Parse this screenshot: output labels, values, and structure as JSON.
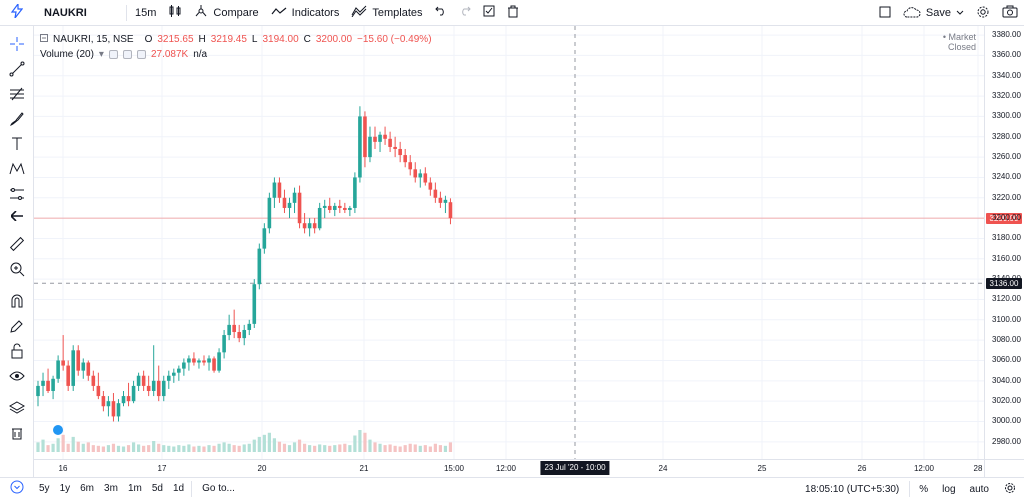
{
  "toolbar": {
    "symbol": "NAUKRI",
    "interval": "15m",
    "compare_label": "Compare",
    "indicators_label": "Indicators",
    "templates_label": "Templates",
    "save_label": "Save"
  },
  "legend": {
    "title": "NAUKRI, 15, NSE",
    "open_label": "O",
    "open": "3215.65",
    "high_label": "H",
    "high": "3219.45",
    "low_label": "L",
    "low": "3194.00",
    "close_label": "C",
    "close": "3200.00",
    "change": "−15.60 (−0.49%)",
    "volume_title": "Volume (20)",
    "volume_value": "27.087K",
    "volume_ma": "n/a",
    "market_status": "Market Closed"
  },
  "price_axis": {
    "ticks": [
      "3380.00",
      "3360.00",
      "3340.00",
      "3320.00",
      "3300.00",
      "3280.00",
      "3260.00",
      "3240.00",
      "3220.00",
      "3200.00",
      "3180.00",
      "3160.00",
      "3140.00",
      "3120.00",
      "3100.00",
      "3080.00",
      "3060.00",
      "3040.00",
      "3020.00",
      "3000.00",
      "2980.00"
    ],
    "last_price_tag": "3200.00",
    "crosshair_price_tag": "3136.00"
  },
  "time_axis": {
    "labels": [
      {
        "text": "16"
      },
      {
        "text": "17"
      },
      {
        "text": "20"
      },
      {
        "text": "21"
      },
      {
        "text": "15:00"
      },
      {
        "text": "12:00"
      },
      {
        "text": "24"
      },
      {
        "text": "25"
      },
      {
        "text": "26"
      },
      {
        "text": "12:00"
      },
      {
        "text": "28"
      }
    ],
    "crosshair_time_tag": "23 Jul '20 - 10:00"
  },
  "bottombar": {
    "ranges": [
      "5y",
      "1y",
      "6m",
      "3m",
      "1m",
      "5d",
      "1d"
    ],
    "goto_label": "Go to...",
    "clock": "18:05:10 (UTC+5:30)",
    "percent_label": "%",
    "log_label": "log",
    "auto_label": "auto"
  },
  "colors": {
    "up": "#26a69a",
    "down": "#ef5350",
    "accent": "#2962ff",
    "volume_up": "#b3e0d7",
    "volume_down": "#f5c3c3"
  },
  "chart_data": {
    "type": "candlestick",
    "ylim": [
      2970,
      3385
    ],
    "candles": [
      [
        3025,
        3040,
        3015,
        3035
      ],
      [
        3035,
        3048,
        3025,
        3040
      ],
      [
        3040,
        3052,
        3028,
        3030
      ],
      [
        3030,
        3045,
        3022,
        3042
      ],
      [
        3042,
        3065,
        3038,
        3060
      ],
      [
        3060,
        3085,
        3050,
        3055
      ],
      [
        3055,
        3060,
        3030,
        3035
      ],
      [
        3035,
        3075,
        3030,
        3070
      ],
      [
        3070,
        3075,
        3045,
        3050
      ],
      [
        3050,
        3062,
        3042,
        3058
      ],
      [
        3058,
        3060,
        3040,
        3045
      ],
      [
        3045,
        3050,
        3030,
        3035
      ],
      [
        3035,
        3048,
        3022,
        3025
      ],
      [
        3025,
        3030,
        3010,
        3015
      ],
      [
        3015,
        3025,
        3005,
        3020
      ],
      [
        3020,
        3028,
        3000,
        3005
      ],
      [
        3005,
        3022,
        3000,
        3018
      ],
      [
        3018,
        3030,
        3015,
        3025
      ],
      [
        3025,
        3038,
        3015,
        3020
      ],
      [
        3020,
        3040,
        3018,
        3035
      ],
      [
        3035,
        3048,
        3030,
        3045
      ],
      [
        3045,
        3050,
        3030,
        3035
      ],
      [
        3035,
        3045,
        3025,
        3030
      ],
      [
        3030,
        3075,
        3025,
        3040
      ],
      [
        3040,
        3055,
        3020,
        3025
      ],
      [
        3025,
        3045,
        3020,
        3040
      ],
      [
        3040,
        3050,
        3032,
        3045
      ],
      [
        3045,
        3052,
        3038,
        3048
      ],
      [
        3048,
        3055,
        3040,
        3052
      ],
      [
        3052,
        3062,
        3045,
        3058
      ],
      [
        3058,
        3065,
        3050,
        3062
      ],
      [
        3062,
        3068,
        3055,
        3058
      ],
      [
        3058,
        3062,
        3052,
        3060
      ],
      [
        3060,
        3065,
        3055,
        3058
      ],
      [
        3058,
        3065,
        3050,
        3062
      ],
      [
        3062,
        3064,
        3048,
        3050
      ],
      [
        3050,
        3072,
        3048,
        3068
      ],
      [
        3068,
        3090,
        3062,
        3085
      ],
      [
        3085,
        3105,
        3080,
        3095
      ],
      [
        3095,
        3110,
        3082,
        3088
      ],
      [
        3088,
        3095,
        3078,
        3082
      ],
      [
        3082,
        3095,
        3075,
        3090
      ],
      [
        3090,
        3100,
        3085,
        3096
      ],
      [
        3096,
        3140,
        3092,
        3135
      ],
      [
        3135,
        3175,
        3130,
        3170
      ],
      [
        3170,
        3195,
        3165,
        3190
      ],
      [
        3190,
        3225,
        3185,
        3220
      ],
      [
        3220,
        3240,
        3210,
        3235
      ],
      [
        3235,
        3240,
        3215,
        3220
      ],
      [
        3220,
        3228,
        3205,
        3210
      ],
      [
        3210,
        3220,
        3200,
        3215
      ],
      [
        3215,
        3230,
        3205,
        3225
      ],
      [
        3225,
        3232,
        3190,
        3195
      ],
      [
        3195,
        3205,
        3185,
        3190
      ],
      [
        3190,
        3200,
        3182,
        3195
      ],
      [
        3195,
        3200,
        3185,
        3190
      ],
      [
        3190,
        3215,
        3188,
        3210
      ],
      [
        3210,
        3218,
        3200,
        3212
      ],
      [
        3212,
        3220,
        3205,
        3208
      ],
      [
        3208,
        3215,
        3202,
        3212
      ],
      [
        3212,
        3218,
        3205,
        3210
      ],
      [
        3210,
        3215,
        3205,
        3208
      ],
      [
        3208,
        3212,
        3202,
        3210
      ],
      [
        3210,
        3245,
        3205,
        3240
      ],
      [
        3240,
        3310,
        3235,
        3300
      ],
      [
        3300,
        3305,
        3250,
        3260
      ],
      [
        3260,
        3290,
        3255,
        3280
      ],
      [
        3280,
        3290,
        3268,
        3275
      ],
      [
        3275,
        3285,
        3265,
        3282
      ],
      [
        3282,
        3290,
        3272,
        3278
      ],
      [
        3278,
        3285,
        3265,
        3270
      ],
      [
        3270,
        3280,
        3260,
        3268
      ],
      [
        3268,
        3275,
        3255,
        3262
      ],
      [
        3262,
        3268,
        3250,
        3255
      ],
      [
        3255,
        3262,
        3242,
        3248
      ],
      [
        3248,
        3255,
        3235,
        3240
      ],
      [
        3240,
        3248,
        3230,
        3244
      ],
      [
        3244,
        3250,
        3232,
        3235
      ],
      [
        3235,
        3240,
        3222,
        3228
      ],
      [
        3228,
        3235,
        3215,
        3220
      ],
      [
        3220,
        3226,
        3210,
        3215
      ],
      [
        3215,
        3222,
        3205,
        3218
      ],
      [
        3215.65,
        3219.45,
        3194,
        3200
      ]
    ],
    "volume_ylim": [
      0,
      110
    ],
    "volumes": [
      14,
      18,
      10,
      12,
      20,
      25,
      12,
      22,
      15,
      12,
      14,
      10,
      9,
      8,
      10,
      12,
      9,
      8,
      10,
      14,
      11,
      9,
      10,
      16,
      12,
      10,
      9,
      8,
      10,
      9,
      11,
      8,
      9,
      8,
      10,
      9,
      12,
      14,
      12,
      10,
      9,
      11,
      12,
      18,
      22,
      25,
      28,
      20,
      15,
      12,
      10,
      14,
      18,
      12,
      10,
      9,
      11,
      10,
      9,
      10,
      11,
      12,
      10,
      24,
      32,
      28,
      18,
      14,
      12,
      10,
      11,
      9,
      8,
      10,
      12,
      11,
      9,
      10,
      8,
      12,
      10,
      9,
      14
    ]
  }
}
